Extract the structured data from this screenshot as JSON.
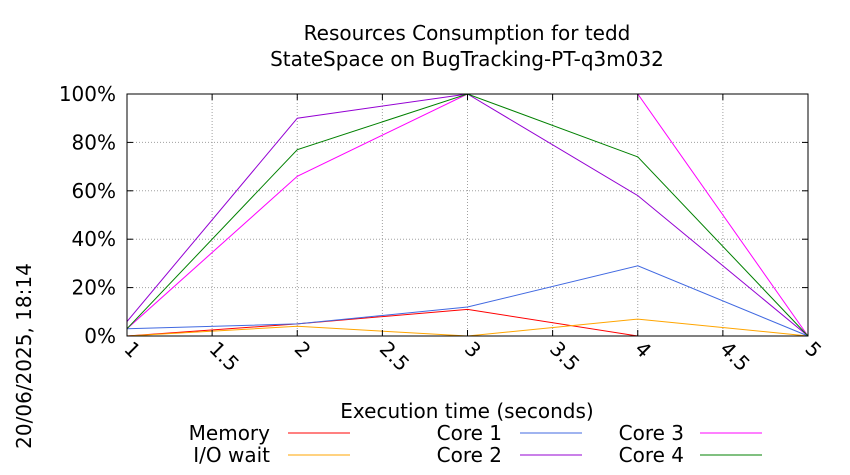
{
  "chart_data": {
    "type": "line",
    "title": "Resources Consumption for tedd",
    "subtitle": "StateSpace on BugTracking-PT-q3m032",
    "xlabel": "Execution time (seconds)",
    "ylabel": "",
    "side_label": "20/06/2025, 18:14",
    "xlim": [
      1,
      5
    ],
    "ylim": [
      0,
      100
    ],
    "grid": true,
    "x_ticks": [
      1,
      1.5,
      2,
      2.5,
      3,
      3.5,
      4,
      4.5,
      5
    ],
    "x_tick_labels": [
      "1",
      "1.5",
      "2",
      "2.5",
      "3",
      "3.5",
      "4",
      "4.5",
      "5"
    ],
    "y_ticks": [
      0,
      20,
      40,
      60,
      80,
      100
    ],
    "y_tick_labels": [
      "0%",
      "20%",
      "40%",
      "60%",
      "80%",
      "100%"
    ],
    "legend_position": "bottom",
    "series": [
      {
        "name": "Memory",
        "color": "#ff0000",
        "x": [
          1,
          2,
          3,
          4,
          5
        ],
        "y": [
          0,
          5,
          11,
          0,
          0
        ]
      },
      {
        "name": "I/O wait",
        "color": "#ffa500",
        "x": [
          1,
          2,
          3,
          4,
          5
        ],
        "y": [
          0,
          4,
          0,
          7,
          0
        ]
      },
      {
        "name": "Core 1",
        "color": "#4169e1",
        "x": [
          1,
          2,
          3,
          4,
          5
        ],
        "y": [
          3,
          5,
          12,
          29,
          0
        ]
      },
      {
        "name": "Core 2",
        "color": "#9400d3",
        "x": [
          1,
          2,
          3,
          4,
          5
        ],
        "y": [
          6,
          90,
          100,
          58,
          0
        ]
      },
      {
        "name": "Core 3",
        "color": "#ff00ff",
        "x": [
          1,
          2,
          3,
          4,
          5
        ],
        "y": [
          3,
          66,
          100,
          100,
          0
        ]
      },
      {
        "name": "Core 4",
        "color": "#008000",
        "x": [
          1,
          2,
          3,
          4,
          5
        ],
        "y": [
          3,
          77,
          100,
          74,
          0
        ]
      }
    ]
  }
}
